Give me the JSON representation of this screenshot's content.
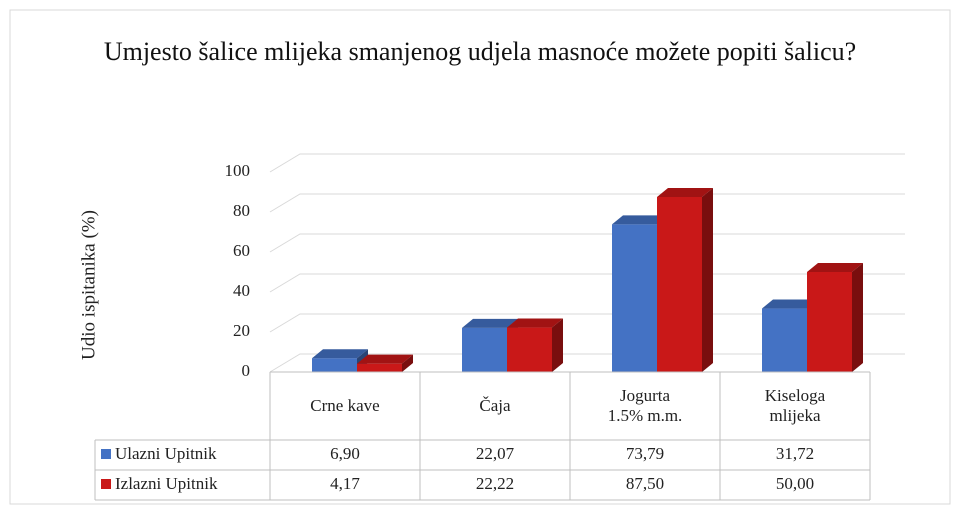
{
  "chart_data": {
    "type": "bar3d",
    "title": "Umjesto šalice mlijeka smanjenog udjela masnoće možete popiti šalicu?",
    "y_axis_label": "Udio ispitanika (%)",
    "categories": [
      "Crne kave",
      "Čaja",
      "Jogurta 1.5% m.m.",
      "Kiseloga mlijeka"
    ],
    "series": [
      {
        "name": "Ulazni Upitnik",
        "color": "#4472c4",
        "values": [
          6.9,
          22.07,
          73.79,
          31.72
        ],
        "value_labels": [
          "6,90",
          "22,07",
          "73,79",
          "31,72"
        ]
      },
      {
        "name": "Izlazni Upitnik",
        "color": "#c91818",
        "values": [
          4.17,
          22.22,
          87.5,
          50.0
        ],
        "value_labels": [
          "4,17",
          "22,22",
          "87,50",
          "50,00"
        ]
      }
    ],
    "ylim": [
      0,
      100
    ],
    "yticks": [
      0,
      20,
      40,
      60,
      80,
      100
    ],
    "grid": true
  }
}
